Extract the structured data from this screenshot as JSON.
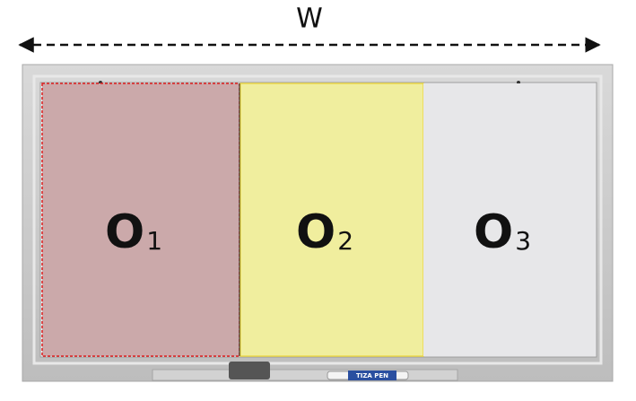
{
  "width_label": "W",
  "regions": [
    {
      "letter": "O",
      "index": "1"
    },
    {
      "letter": "O",
      "index": "2"
    },
    {
      "letter": "O",
      "index": "3"
    }
  ],
  "marker_label": "TIZA PEN"
}
